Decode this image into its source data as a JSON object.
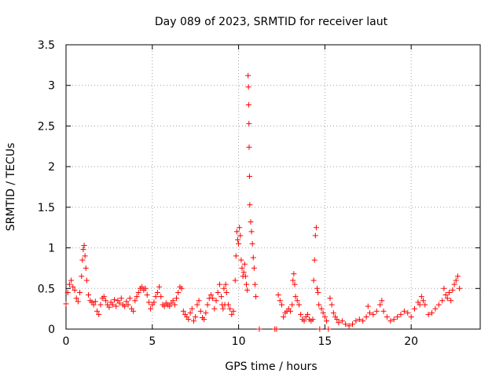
{
  "chart_data": {
    "type": "scatter",
    "title": "Day 089 of 2023, SRMTID for receiver laut",
    "xlabel": "GPS time / hours",
    "ylabel": "SRMTID / TECUs",
    "xlim": [
      0,
      24
    ],
    "ylim": [
      0,
      3.5
    ],
    "xticks": [
      0,
      5,
      10,
      15,
      20
    ],
    "xtick_labels": [
      "0",
      "5",
      "10",
      "15",
      "20"
    ],
    "yticks": [
      0,
      0.5,
      1,
      1.5,
      2,
      2.5,
      3,
      3.5
    ],
    "ytick_labels": [
      "0",
      "0.5",
      "1",
      "1.5",
      "2",
      "2.5",
      "3",
      "3.5"
    ],
    "grid": true,
    "marker": "+",
    "color": "#ff0000",
    "series": [
      {
        "name": "SRMTID",
        "points": [
          [
            0.0,
            0.31
          ],
          [
            0.1,
            0.45
          ],
          [
            0.2,
            0.55
          ],
          [
            0.3,
            0.6
          ],
          [
            0.4,
            0.52
          ],
          [
            0.5,
            0.48
          ],
          [
            0.6,
            0.38
          ],
          [
            0.7,
            0.34
          ],
          [
            0.8,
            0.45
          ],
          [
            0.9,
            0.65
          ],
          [
            0.95,
            0.85
          ],
          [
            1.0,
            0.98
          ],
          [
            1.05,
            1.03
          ],
          [
            1.1,
            0.9
          ],
          [
            1.15,
            0.75
          ],
          [
            1.2,
            0.6
          ],
          [
            1.3,
            0.42
          ],
          [
            1.4,
            0.35
          ],
          [
            1.5,
            0.33
          ],
          [
            1.6,
            0.3
          ],
          [
            1.7,
            0.34
          ],
          [
            1.8,
            0.22
          ],
          [
            1.9,
            0.18
          ],
          [
            2.0,
            0.3
          ],
          [
            2.1,
            0.38
          ],
          [
            2.2,
            0.4
          ],
          [
            2.3,
            0.35
          ],
          [
            2.4,
            0.3
          ],
          [
            2.5,
            0.27
          ],
          [
            2.6,
            0.33
          ],
          [
            2.7,
            0.3
          ],
          [
            2.8,
            0.36
          ],
          [
            2.9,
            0.28
          ],
          [
            3.0,
            0.35
          ],
          [
            3.1,
            0.32
          ],
          [
            3.2,
            0.38
          ],
          [
            3.3,
            0.3
          ],
          [
            3.4,
            0.28
          ],
          [
            3.5,
            0.34
          ],
          [
            3.6,
            0.3
          ],
          [
            3.7,
            0.38
          ],
          [
            3.8,
            0.25
          ],
          [
            3.9,
            0.22
          ],
          [
            4.0,
            0.35
          ],
          [
            4.1,
            0.4
          ],
          [
            4.2,
            0.45
          ],
          [
            4.3,
            0.5
          ],
          [
            4.4,
            0.52
          ],
          [
            4.5,
            0.48
          ],
          [
            4.6,
            0.5
          ],
          [
            4.7,
            0.42
          ],
          [
            4.8,
            0.33
          ],
          [
            4.9,
            0.25
          ],
          [
            5.0,
            0.3
          ],
          [
            5.1,
            0.33
          ],
          [
            5.2,
            0.4
          ],
          [
            5.3,
            0.45
          ],
          [
            5.4,
            0.52
          ],
          [
            5.5,
            0.4
          ],
          [
            5.6,
            0.3
          ],
          [
            5.7,
            0.28
          ],
          [
            5.8,
            0.32
          ],
          [
            5.9,
            0.3
          ],
          [
            6.0,
            0.28
          ],
          [
            6.1,
            0.32
          ],
          [
            6.2,
            0.35
          ],
          [
            6.3,
            0.3
          ],
          [
            6.4,
            0.38
          ],
          [
            6.5,
            0.45
          ],
          [
            6.6,
            0.52
          ],
          [
            6.7,
            0.5
          ],
          [
            6.8,
            0.22
          ],
          [
            6.9,
            0.18
          ],
          [
            7.0,
            0.15
          ],
          [
            7.1,
            0.12
          ],
          [
            7.2,
            0.2
          ],
          [
            7.3,
            0.25
          ],
          [
            7.4,
            0.1
          ],
          [
            7.5,
            0.15
          ],
          [
            7.6,
            0.3
          ],
          [
            7.7,
            0.35
          ],
          [
            7.8,
            0.22
          ],
          [
            7.9,
            0.14
          ],
          [
            8.0,
            0.12
          ],
          [
            8.1,
            0.2
          ],
          [
            8.2,
            0.3
          ],
          [
            8.3,
            0.38
          ],
          [
            8.4,
            0.42
          ],
          [
            8.5,
            0.38
          ],
          [
            8.6,
            0.25
          ],
          [
            8.7,
            0.35
          ],
          [
            8.8,
            0.45
          ],
          [
            8.9,
            0.55
          ],
          [
            9.0,
            0.4
          ],
          [
            9.05,
            0.3
          ],
          [
            9.1,
            0.25
          ],
          [
            9.15,
            0.5
          ],
          [
            9.2,
            0.3
          ],
          [
            9.25,
            0.55
          ],
          [
            9.3,
            0.45
          ],
          [
            9.4,
            0.3
          ],
          [
            9.5,
            0.25
          ],
          [
            9.6,
            0.18
          ],
          [
            9.7,
            0.22
          ],
          [
            9.8,
            0.6
          ],
          [
            9.85,
            0.9
          ],
          [
            9.9,
            1.2
          ],
          [
            9.95,
            1.1
          ],
          [
            10.0,
            1.05
          ],
          [
            10.05,
            1.25
          ],
          [
            10.1,
            1.15
          ],
          [
            10.15,
            0.85
          ],
          [
            10.2,
            0.75
          ],
          [
            10.25,
            0.65
          ],
          [
            10.3,
            0.7
          ],
          [
            10.35,
            0.8
          ],
          [
            10.4,
            0.65
          ],
          [
            10.45,
            0.55
          ],
          [
            10.5,
            0.48
          ],
          [
            10.55,
            3.12
          ],
          [
            10.57,
            2.98
          ],
          [
            10.58,
            2.76
          ],
          [
            10.6,
            2.53
          ],
          [
            10.61,
            2.24
          ],
          [
            10.63,
            1.88
          ],
          [
            10.65,
            1.53
          ],
          [
            10.7,
            1.32
          ],
          [
            10.75,
            1.2
          ],
          [
            10.8,
            1.05
          ],
          [
            10.85,
            0.88
          ],
          [
            10.9,
            0.75
          ],
          [
            10.95,
            0.55
          ],
          [
            11.0,
            0.4
          ],
          [
            11.2,
            0.0
          ],
          [
            12.1,
            0.0
          ],
          [
            12.2,
            0.0
          ],
          [
            12.3,
            0.42
          ],
          [
            12.4,
            0.35
          ],
          [
            12.5,
            0.3
          ],
          [
            12.6,
            0.15
          ],
          [
            12.7,
            0.2
          ],
          [
            12.8,
            0.22
          ],
          [
            12.9,
            0.25
          ],
          [
            13.0,
            0.22
          ],
          [
            13.1,
            0.3
          ],
          [
            13.15,
            0.6
          ],
          [
            13.2,
            0.68
          ],
          [
            13.25,
            0.55
          ],
          [
            13.3,
            0.4
          ],
          [
            13.4,
            0.35
          ],
          [
            13.5,
            0.3
          ],
          [
            13.6,
            0.18
          ],
          [
            13.7,
            0.12
          ],
          [
            13.8,
            0.1
          ],
          [
            13.9,
            0.15
          ],
          [
            14.0,
            0.18
          ],
          [
            14.1,
            0.12
          ],
          [
            14.2,
            0.1
          ],
          [
            14.3,
            0.12
          ],
          [
            14.35,
            0.6
          ],
          [
            14.4,
            0.85
          ],
          [
            14.45,
            1.15
          ],
          [
            14.5,
            1.25
          ],
          [
            14.55,
            0.5
          ],
          [
            14.6,
            0.45
          ],
          [
            14.65,
            0.3
          ],
          [
            14.7,
            0.0
          ],
          [
            14.8,
            0.25
          ],
          [
            14.9,
            0.2
          ],
          [
            15.0,
            0.15
          ],
          [
            15.1,
            0.1
          ],
          [
            15.2,
            0.0
          ],
          [
            15.3,
            0.38
          ],
          [
            15.4,
            0.3
          ],
          [
            15.5,
            0.2
          ],
          [
            15.6,
            0.15
          ],
          [
            15.7,
            0.12
          ],
          [
            15.8,
            0.08
          ],
          [
            16.0,
            0.1
          ],
          [
            16.2,
            0.06
          ],
          [
            16.4,
            0.04
          ],
          [
            16.6,
            0.06
          ],
          [
            16.8,
            0.1
          ],
          [
            17.0,
            0.12
          ],
          [
            17.2,
            0.1
          ],
          [
            17.4,
            0.15
          ],
          [
            17.5,
            0.28
          ],
          [
            17.6,
            0.2
          ],
          [
            17.8,
            0.18
          ],
          [
            18.0,
            0.22
          ],
          [
            18.2,
            0.3
          ],
          [
            18.3,
            0.35
          ],
          [
            18.4,
            0.22
          ],
          [
            18.6,
            0.15
          ],
          [
            18.8,
            0.1
          ],
          [
            19.0,
            0.12
          ],
          [
            19.2,
            0.15
          ],
          [
            19.4,
            0.18
          ],
          [
            19.6,
            0.22
          ],
          [
            19.8,
            0.2
          ],
          [
            20.0,
            0.15
          ],
          [
            20.2,
            0.25
          ],
          [
            20.4,
            0.33
          ],
          [
            20.5,
            0.3
          ],
          [
            20.6,
            0.4
          ],
          [
            20.7,
            0.35
          ],
          [
            20.8,
            0.3
          ],
          [
            21.0,
            0.18
          ],
          [
            21.2,
            0.2
          ],
          [
            21.4,
            0.25
          ],
          [
            21.6,
            0.3
          ],
          [
            21.8,
            0.35
          ],
          [
            21.9,
            0.5
          ],
          [
            22.0,
            0.42
          ],
          [
            22.1,
            0.38
          ],
          [
            22.2,
            0.45
          ],
          [
            22.3,
            0.35
          ],
          [
            22.4,
            0.48
          ],
          [
            22.5,
            0.55
          ],
          [
            22.6,
            0.6
          ],
          [
            22.7,
            0.65
          ],
          [
            22.8,
            0.5
          ]
        ]
      }
    ]
  }
}
